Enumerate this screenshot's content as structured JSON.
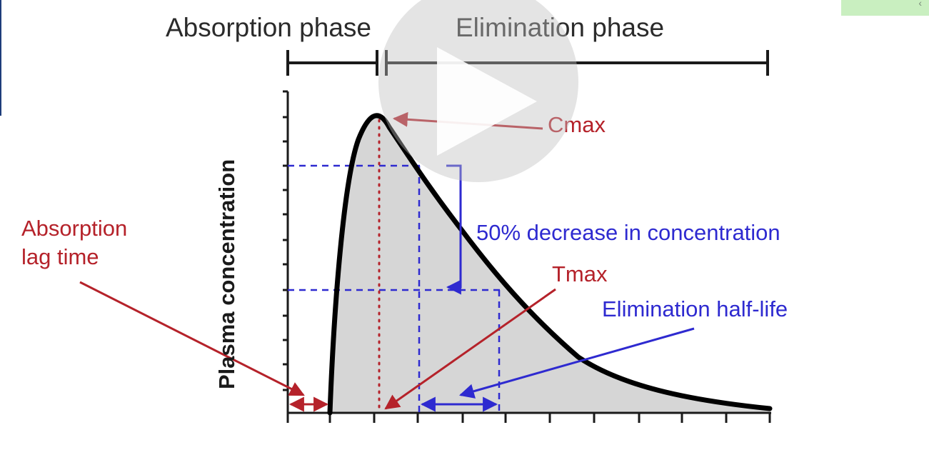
{
  "phases": {
    "absorption": "Absorption phase",
    "elimination": "Elimination phase"
  },
  "labels": {
    "cmax": "Cmax",
    "tmax": "Tmax",
    "lag_line1": "Absorption",
    "lag_line2": "lag time",
    "decrease": "50% decrease in concentration",
    "half_life": "Elimination half-life",
    "y_axis": "Plasma concentration"
  },
  "overlay": {
    "corner_glyph": "‹",
    "play_icon": "play-icon"
  },
  "colors": {
    "curve": "#000000",
    "fill": "#d6d6d6",
    "red_annotation": "#b5222a",
    "blue_annotation": "#2e2ad0"
  }
}
